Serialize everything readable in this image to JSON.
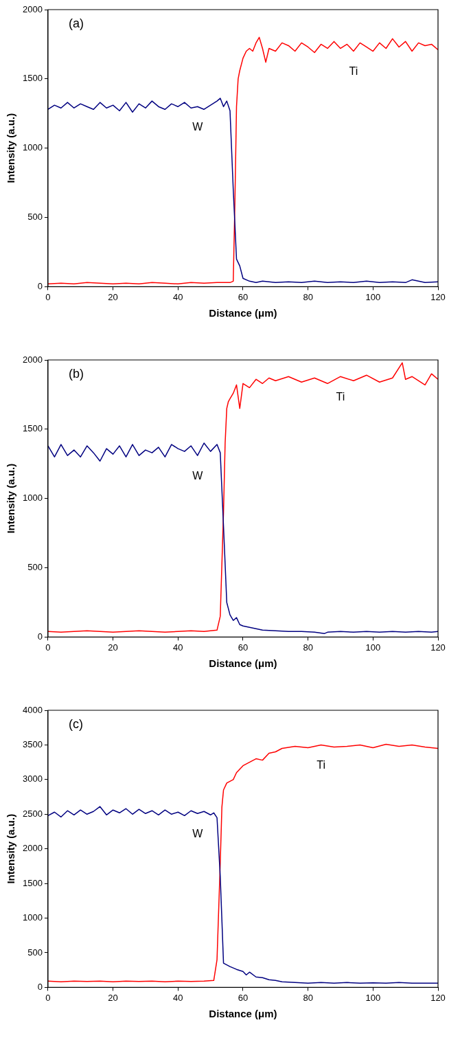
{
  "chart_data": [
    {
      "type": "line",
      "xlabel": "Distance (μm)",
      "ylabel": "Intensity (a.u.)",
      "xlim": [
        0,
        120
      ],
      "xticks": [
        0,
        20,
        40,
        60,
        80,
        100,
        120
      ],
      "ylim": [
        0,
        2000
      ],
      "yticks": [
        0,
        500,
        1000,
        1500,
        2000
      ],
      "grid": false,
      "legend": false,
      "annotations": [
        "(a)"
      ],
      "series": [
        {
          "name": "W",
          "color": "#000080",
          "x": [
            0,
            2,
            4,
            6,
            8,
            10,
            12,
            14,
            16,
            18,
            20,
            22,
            24,
            26,
            28,
            30,
            32,
            34,
            36,
            38,
            40,
            42,
            44,
            46,
            48,
            50,
            52,
            53,
            54,
            55,
            56,
            57,
            58,
            59,
            60,
            62,
            64,
            66,
            70,
            74,
            78,
            82,
            86,
            90,
            94,
            98,
            102,
            106,
            110,
            112,
            116,
            120
          ],
          "values": [
            1280,
            1310,
            1290,
            1330,
            1290,
            1320,
            1300,
            1280,
            1330,
            1290,
            1310,
            1270,
            1330,
            1260,
            1320,
            1290,
            1340,
            1300,
            1280,
            1320,
            1300,
            1330,
            1290,
            1300,
            1280,
            1310,
            1340,
            1360,
            1300,
            1340,
            1270,
            700,
            200,
            150,
            60,
            40,
            30,
            40,
            30,
            35,
            30,
            40,
            30,
            35,
            30,
            40,
            30,
            35,
            30,
            50,
            30,
            35
          ]
        },
        {
          "name": "Ti",
          "color": "#ff0000",
          "x": [
            0,
            4,
            8,
            12,
            16,
            20,
            24,
            28,
            32,
            36,
            40,
            44,
            48,
            52,
            56,
            57,
            57.5,
            58,
            58.5,
            59,
            60,
            61,
            62,
            63,
            64,
            65,
            66,
            67,
            68,
            70,
            72,
            74,
            76,
            78,
            80,
            82,
            84,
            86,
            88,
            90,
            92,
            94,
            96,
            98,
            100,
            102,
            104,
            106,
            108,
            110,
            112,
            114,
            116,
            118,
            120
          ],
          "values": [
            20,
            25,
            20,
            30,
            25,
            20,
            25,
            20,
            30,
            25,
            20,
            30,
            25,
            30,
            30,
            40,
            600,
            1300,
            1500,
            1560,
            1650,
            1700,
            1720,
            1700,
            1760,
            1800,
            1720,
            1620,
            1720,
            1700,
            1760,
            1740,
            1700,
            1760,
            1730,
            1690,
            1750,
            1720,
            1770,
            1720,
            1750,
            1700,
            1760,
            1730,
            1700,
            1760,
            1720,
            1790,
            1730,
            1770,
            1700,
            1760,
            1740,
            1750,
            1710
          ]
        }
      ]
    },
    {
      "type": "line",
      "xlabel": "Distance (μm)",
      "ylabel": "Intensity (a.u.)",
      "xlim": [
        0,
        120
      ],
      "xticks": [
        0,
        20,
        40,
        60,
        80,
        100,
        120
      ],
      "ylim": [
        0,
        2000
      ],
      "yticks": [
        0,
        500,
        1000,
        1500,
        2000
      ],
      "grid": false,
      "legend": false,
      "annotations": [
        "(b)"
      ],
      "series": [
        {
          "name": "W",
          "color": "#000080",
          "x": [
            0,
            2,
            4,
            6,
            8,
            10,
            12,
            14,
            16,
            18,
            20,
            22,
            24,
            26,
            28,
            30,
            32,
            34,
            36,
            38,
            40,
            42,
            44,
            46,
            48,
            50,
            52,
            53,
            54,
            55,
            56,
            57,
            58,
            59,
            60,
            62,
            64,
            66,
            70,
            74,
            78,
            82,
            85,
            86,
            90,
            94,
            98,
            102,
            106,
            110,
            114,
            118,
            120
          ],
          "values": [
            1380,
            1300,
            1390,
            1310,
            1350,
            1300,
            1380,
            1330,
            1270,
            1360,
            1320,
            1380,
            1300,
            1390,
            1310,
            1350,
            1330,
            1370,
            1300,
            1390,
            1360,
            1340,
            1380,
            1310,
            1400,
            1340,
            1390,
            1330,
            800,
            250,
            160,
            120,
            140,
            90,
            80,
            70,
            60,
            50,
            45,
            40,
            40,
            35,
            25,
            35,
            40,
            35,
            40,
            35,
            40,
            35,
            40,
            35,
            40
          ]
        },
        {
          "name": "Ti",
          "color": "#ff0000",
          "x": [
            0,
            4,
            8,
            12,
            16,
            20,
            24,
            28,
            32,
            36,
            40,
            44,
            48,
            52,
            53,
            54,
            54.5,
            55,
            55.5,
            56,
            57,
            58,
            59,
            60,
            62,
            64,
            66,
            68,
            70,
            74,
            78,
            82,
            86,
            90,
            94,
            98,
            102,
            106,
            109,
            110,
            112,
            116,
            118,
            120
          ],
          "values": [
            40,
            35,
            40,
            45,
            40,
            35,
            40,
            45,
            40,
            35,
            40,
            45,
            40,
            50,
            150,
            900,
            1400,
            1650,
            1700,
            1720,
            1760,
            1820,
            1650,
            1830,
            1800,
            1860,
            1830,
            1870,
            1850,
            1880,
            1840,
            1870,
            1830,
            1880,
            1850,
            1890,
            1840,
            1870,
            1980,
            1860,
            1880,
            1820,
            1900,
            1860
          ]
        }
      ]
    },
    {
      "type": "line",
      "xlabel": "Distance (μm)",
      "ylabel": "Intensity (a.u.)",
      "xlim": [
        0,
        120
      ],
      "xticks": [
        0,
        20,
        40,
        60,
        80,
        100,
        120
      ],
      "ylim": [
        0,
        4000
      ],
      "yticks": [
        0,
        500,
        1000,
        1500,
        2000,
        2500,
        3000,
        3500,
        4000
      ],
      "grid": false,
      "legend": false,
      "annotations": [
        "(c)"
      ],
      "series": [
        {
          "name": "W",
          "color": "#000080",
          "x": [
            0,
            2,
            4,
            6,
            8,
            10,
            12,
            14,
            16,
            18,
            20,
            22,
            24,
            26,
            28,
            30,
            32,
            34,
            36,
            38,
            40,
            42,
            44,
            46,
            48,
            50,
            51,
            52,
            53,
            54,
            56,
            58,
            60,
            61,
            62,
            64,
            66,
            68,
            70,
            72,
            76,
            80,
            84,
            88,
            92,
            96,
            100,
            104,
            108,
            112,
            116,
            120
          ],
          "values": [
            2480,
            2530,
            2460,
            2550,
            2490,
            2560,
            2500,
            2540,
            2610,
            2490,
            2560,
            2520,
            2580,
            2500,
            2570,
            2510,
            2550,
            2490,
            2560,
            2500,
            2530,
            2480,
            2550,
            2510,
            2540,
            2490,
            2520,
            2450,
            1600,
            350,
            300,
            260,
            230,
            180,
            220,
            150,
            140,
            110,
            100,
            80,
            70,
            60,
            70,
            60,
            70,
            60,
            65,
            60,
            70,
            60,
            60,
            60
          ]
        },
        {
          "name": "Ti",
          "color": "#ff0000",
          "x": [
            0,
            4,
            8,
            12,
            16,
            20,
            24,
            28,
            32,
            36,
            40,
            44,
            48,
            51,
            52,
            53,
            53.5,
            54,
            55,
            57,
            58,
            60,
            62,
            64,
            66,
            68,
            70,
            72,
            76,
            80,
            84,
            88,
            92,
            96,
            100,
            104,
            108,
            112,
            116,
            120
          ],
          "values": [
            90,
            80,
            90,
            85,
            90,
            80,
            90,
            85,
            90,
            80,
            90,
            85,
            90,
            100,
            400,
            1800,
            2600,
            2850,
            2950,
            3000,
            3100,
            3200,
            3250,
            3300,
            3280,
            3380,
            3400,
            3450,
            3480,
            3460,
            3500,
            3470,
            3480,
            3500,
            3460,
            3510,
            3480,
            3500,
            3470,
            3450
          ]
        }
      ]
    }
  ]
}
